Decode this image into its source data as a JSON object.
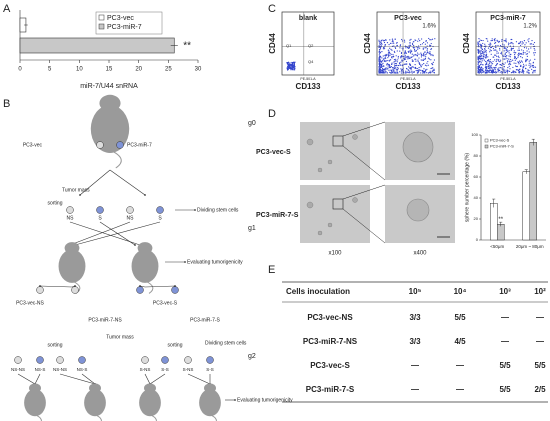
{
  "panel_a": {
    "label": "A",
    "chart": {
      "type": "bar",
      "orientation": "horizontal",
      "categories": [
        "PC3-vec",
        "PC3-miR-7"
      ],
      "values": [
        1,
        26
      ],
      "errors": [
        0.3,
        0.6
      ],
      "colors": [
        "#ffffff",
        "#c8c8c8"
      ],
      "xlim": [
        0,
        30
      ],
      "xticks": [
        0,
        5,
        10,
        15,
        20,
        25,
        30
      ],
      "xlabel": "miR-7/U44 snRNA",
      "annotation": "**"
    }
  },
  "panel_b": {
    "label": "B",
    "generations": [
      "g0",
      "g1",
      "g2"
    ],
    "texts": [
      "PC3-vec",
      "PC3-miR-7",
      "Tumor mass",
      "sorting",
      "NS",
      "S",
      "NS",
      "S",
      "Dividing stem cells",
      "Evaluating tumorigenicity",
      "PC3-vec-NS",
      "PC3-miR-7-NS",
      "PC3-vec-S",
      "PC3-miR-7-S",
      "Tumor mass",
      "sorting",
      "sorting",
      "Dividing stem cells",
      "Evaluating tumorigenicity"
    ],
    "bottom_labels": [
      "NS-NS",
      "NS-S",
      "NS-NS",
      "NS-S",
      "S-NS",
      "S-S",
      "S-NS",
      "S-S"
    ]
  },
  "panel_c": {
    "label": "C",
    "ylabel": "CD44",
    "xlabel": "CD133",
    "axis_name": "PE-501-A",
    "plots": [
      {
        "title": "blank",
        "quadrants": [
          "Q1",
          "Q2",
          "Q4"
        ]
      },
      {
        "title": "PC3-vec",
        "percent": "1.6%"
      },
      {
        "title": "PC3-miR-7",
        "percent": "1.2%"
      }
    ]
  },
  "panel_d": {
    "label": "D",
    "rows": [
      "PC3-vec-S",
      "PC3-miR-7-S"
    ],
    "magnifications": [
      "x100",
      "x400"
    ],
    "chart": {
      "type": "bar",
      "categories": [
        "<50μm",
        "20μm ~ 80μm"
      ],
      "ylabel": "sphere number percentage (%)",
      "series": [
        {
          "name": "PC3-vec-S",
          "color": "#ffffff",
          "values": [
            35,
            65
          ],
          "errors": [
            4,
            2
          ]
        },
        {
          "name": "PC3-miR-7-S",
          "color": "#c8c8c8",
          "values": [
            15,
            93
          ],
          "errors": [
            2,
            3
          ]
        }
      ],
      "ylim": [
        0,
        100
      ],
      "yticks": [
        0,
        20,
        40,
        60,
        80,
        100
      ],
      "annotation": "**"
    }
  },
  "panel_e": {
    "label": "E",
    "table": {
      "header": [
        "Cells inoculation",
        "10⁵",
        "10⁴",
        "10³",
        "10²"
      ],
      "rows": [
        [
          "PC3-vec-NS",
          "3/3",
          "5/5",
          "—",
          "—"
        ],
        [
          "PC3-miR-7-NS",
          "3/3",
          "4/5",
          "—",
          "—"
        ],
        [
          "PC3-vec-S",
          "—",
          "—",
          "5/5",
          "5/5"
        ],
        [
          "PC3-miR-7-S",
          "—",
          "—",
          "5/5",
          "2/5"
        ]
      ]
    }
  }
}
